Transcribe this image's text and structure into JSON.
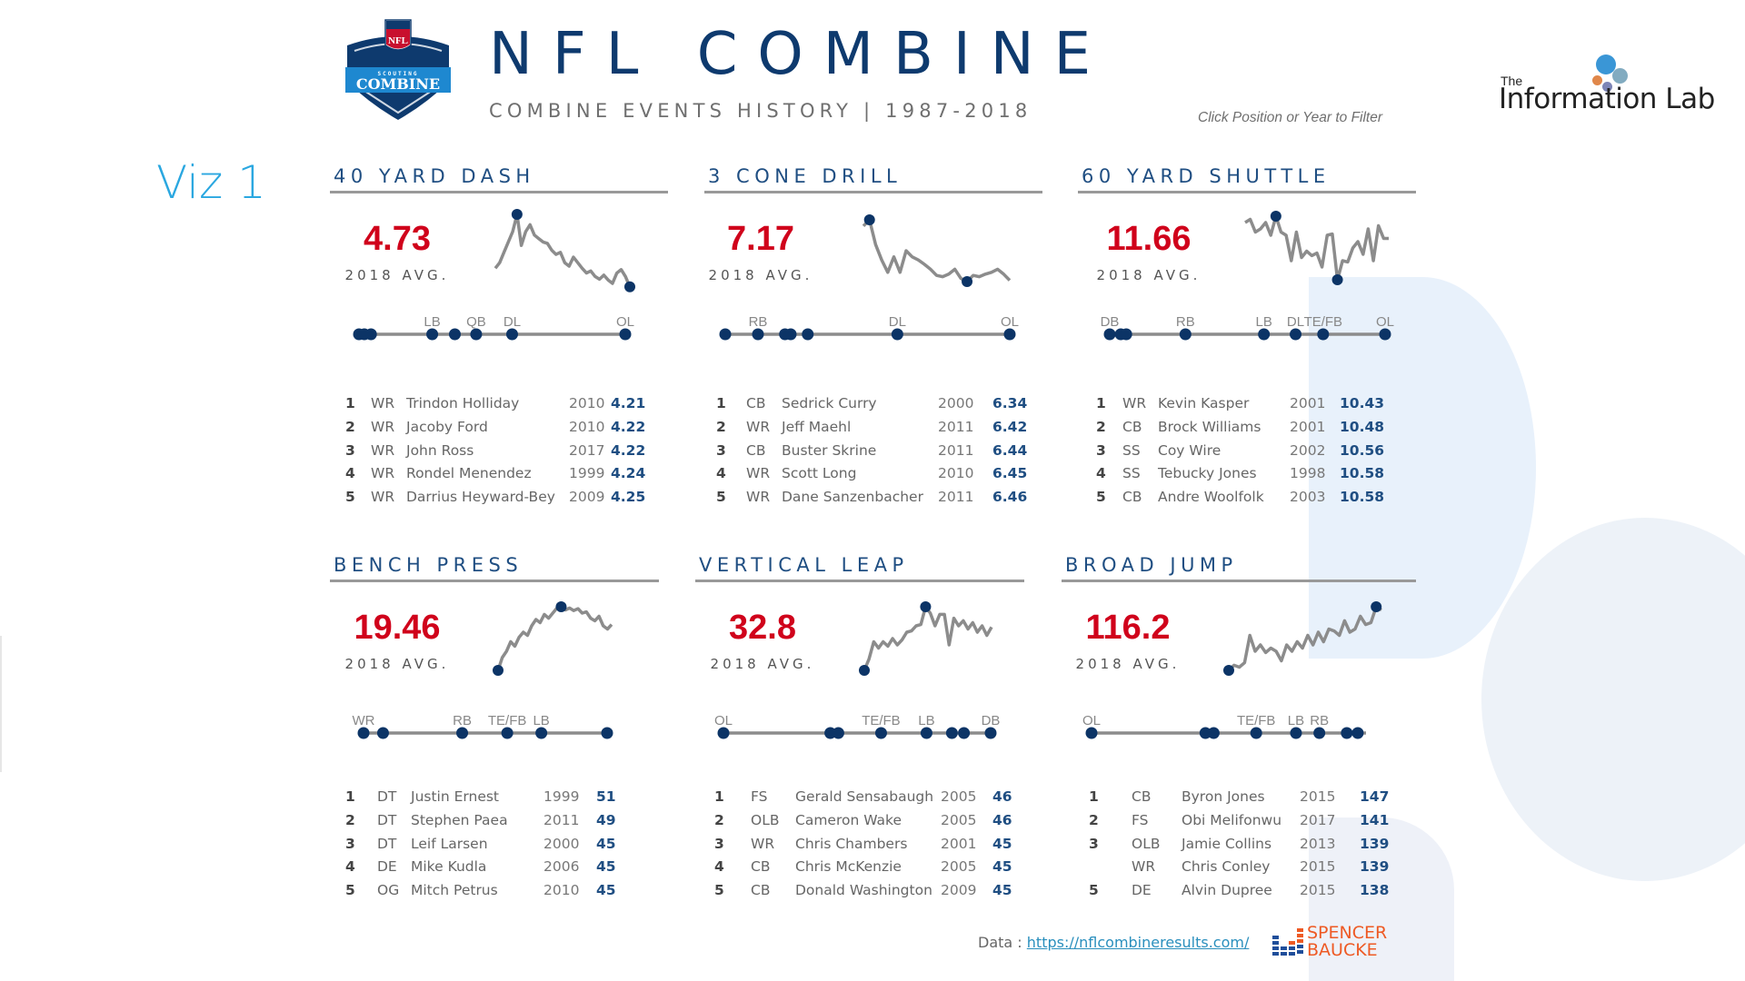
{
  "header": {
    "title": "NFL COMBINE",
    "subtitle": "COMBINE EVENTS HISTORY | 1987-2018",
    "filter_hint": "Click Position or Year to Filter",
    "nfl_logo_text_top": "NFL",
    "nfl_logo_text_scouting": "SCOUTING",
    "nfl_logo_text_combine": "COMBINE",
    "partner_logo_the": "The",
    "partner_logo_name": "Information Lab"
  },
  "viz_label": "Viz 1",
  "colors": {
    "accent_navy": "#0e3a6e",
    "avg_red": "#d0021b",
    "line_gray": "#8c8c8c",
    "dot_navy": "#0c3466",
    "viz_label_blue": "#2aa7e0"
  },
  "avg_label": "2018 AVG.",
  "panels": [
    {
      "title": "40 YARD DASH",
      "avg": "4.73",
      "positions": [
        {
          "label": "",
          "rel": 0.0
        },
        {
          "label": "",
          "rel": 0.02
        },
        {
          "label": "",
          "rel": 0.045
        },
        {
          "label": "LB",
          "rel": 0.275
        },
        {
          "label": "",
          "rel": 0.36
        },
        {
          "label": "QB",
          "rel": 0.44
        },
        {
          "label": "DL",
          "rel": 0.575
        },
        {
          "label": "OL",
          "rel": 1.0
        }
      ],
      "trend": [
        0.78,
        0.7,
        0.55,
        0.4,
        0.25,
        0.0,
        0.45,
        0.25,
        0.15,
        0.3,
        0.35,
        0.4,
        0.42,
        0.52,
        0.58,
        0.55,
        0.7,
        0.75,
        0.62,
        0.7,
        0.78,
        0.85,
        0.82,
        0.9,
        0.94,
        0.88,
        0.95,
        1.0,
        0.85,
        0.8,
        0.9,
        1.05
      ],
      "trend_min_index": 31,
      "trend_max_index": 5,
      "top5": [
        {
          "rank": "1",
          "pos": "WR",
          "name": "Trindon Holliday",
          "year": "2010",
          "value": "4.21"
        },
        {
          "rank": "2",
          "pos": "WR",
          "name": "Jacoby Ford",
          "year": "2010",
          "value": "4.22"
        },
        {
          "rank": "3",
          "pos": "WR",
          "name": "John Ross",
          "year": "2017",
          "value": "4.22"
        },
        {
          "rank": "4",
          "pos": "WR",
          "name": "Rondel Menendez",
          "year": "1999",
          "value": "4.24"
        },
        {
          "rank": "5",
          "pos": "WR",
          "name": "Darrius Heyward-Bey",
          "year": "2009",
          "value": "4.25"
        }
      ]
    },
    {
      "title": "3 CONE DRILL",
      "avg": "7.17",
      "positions": [
        {
          "label": "",
          "rel": 0.0
        },
        {
          "label": "RB",
          "rel": 0.115
        },
        {
          "label": "",
          "rel": 0.21
        },
        {
          "label": "",
          "rel": 0.23
        },
        {
          "label": "",
          "rel": 0.29
        },
        {
          "label": "DL",
          "rel": 0.605
        },
        {
          "label": "OL",
          "rel": 1.0
        }
      ],
      "trend": [
        0.1,
        0.0,
        0.4,
        0.65,
        0.85,
        0.6,
        0.85,
        0.5,
        0.6,
        0.65,
        0.72,
        0.8,
        0.9,
        0.92,
        0.88,
        0.8,
        0.95,
        1.0,
        0.9,
        0.92,
        0.88,
        0.85,
        0.8,
        0.88,
        0.98
      ],
      "trend_min_index": 17,
      "trend_max_index": 1,
      "top5": [
        {
          "rank": "1",
          "pos": "CB",
          "name": "Sedrick Curry",
          "year": "2000",
          "value": "6.34"
        },
        {
          "rank": "2",
          "pos": "WR",
          "name": "Jeff Maehl",
          "year": "2011",
          "value": "6.42"
        },
        {
          "rank": "3",
          "pos": "CB",
          "name": "Buster Skrine",
          "year": "2011",
          "value": "6.44"
        },
        {
          "rank": "4",
          "pos": "WR",
          "name": "Scott Long",
          "year": "2010",
          "value": "6.45"
        },
        {
          "rank": "5",
          "pos": "WR",
          "name": "Dane Sanzenbacher",
          "year": "2011",
          "value": "6.46"
        }
      ]
    },
    {
      "title": "60 YARD SHUTTLE",
      "avg": "11.66",
      "positions": [
        {
          "label": "DB",
          "rel": 0.0
        },
        {
          "label": "",
          "rel": 0.04
        },
        {
          "label": "",
          "rel": 0.06
        },
        {
          "label": "RB",
          "rel": 0.275
        },
        {
          "label": "LB",
          "rel": 0.56
        },
        {
          "label": "DL",
          "rel": 0.675
        },
        {
          "label": "TE/FB",
          "rel": 0.775
        },
        {
          "label": "OL",
          "rel": 1.0
        }
      ],
      "trend": [
        0.1,
        0.05,
        0.25,
        0.2,
        0.1,
        0.3,
        0.0,
        0.25,
        0.3,
        0.7,
        0.25,
        0.65,
        0.55,
        0.62,
        0.58,
        0.8,
        0.3,
        0.28,
        1.0,
        0.7,
        0.72,
        0.5,
        0.4,
        0.6,
        0.2,
        0.7,
        0.15,
        0.35,
        0.35
      ],
      "trend_min_index": 18,
      "trend_max_index": 6,
      "top5": [
        {
          "rank": "1",
          "pos": "WR",
          "name": "Kevin Kasper",
          "year": "2001",
          "value": "10.43"
        },
        {
          "rank": "2",
          "pos": "CB",
          "name": "Brock Williams",
          "year": "2001",
          "value": "10.48"
        },
        {
          "rank": "3",
          "pos": "SS",
          "name": "Coy Wire",
          "year": "2002",
          "value": "10.56"
        },
        {
          "rank": "4",
          "pos": "SS",
          "name": "Tebucky Jones",
          "year": "1998",
          "value": "10.58"
        },
        {
          "rank": "5",
          "pos": "CB",
          "name": "Andre Woolfolk",
          "year": "2003",
          "value": "10.58"
        }
      ]
    },
    {
      "title": "BENCH PRESS",
      "avg": "19.46",
      "positions": [
        {
          "label": "WR",
          "rel": 0.0
        },
        {
          "label": "",
          "rel": 0.08
        },
        {
          "label": "RB",
          "rel": 0.405
        },
        {
          "label": "TE/FB",
          "rel": 0.59
        },
        {
          "label": "LB",
          "rel": 0.73
        },
        {
          "label": "",
          "rel": 1.0
        }
      ],
      "trend": [
        1.0,
        0.8,
        0.7,
        0.55,
        0.62,
        0.48,
        0.4,
        0.45,
        0.3,
        0.2,
        0.25,
        0.12,
        0.18,
        0.1,
        0.02,
        0.0,
        0.05,
        0.02,
        0.06,
        0.03,
        0.1,
        0.08,
        0.18,
        0.22,
        0.15,
        0.3,
        0.35,
        0.28
      ],
      "trend_min_index": 0,
      "trend_max_index": 15,
      "top5": [
        {
          "rank": "1",
          "pos": "DT",
          "name": "Justin Ernest",
          "year": "1999",
          "value": "51"
        },
        {
          "rank": "2",
          "pos": "DT",
          "name": "Stephen Paea",
          "year": "2011",
          "value": "49"
        },
        {
          "rank": "3",
          "pos": "DT",
          "name": "Leif Larsen",
          "year": "2000",
          "value": "45"
        },
        {
          "rank": "4",
          "pos": "DE",
          "name": "Mike Kudla",
          "year": "2006",
          "value": "45"
        },
        {
          "rank": "5",
          "pos": "OG",
          "name": "Mitch Petrus",
          "year": "2010",
          "value": "45"
        }
      ]
    },
    {
      "title": "VERTICAL LEAP",
      "avg": "32.8",
      "positions": [
        {
          "label": "OL",
          "rel": 0.0
        },
        {
          "label": "",
          "rel": 0.4
        },
        {
          "label": "",
          "rel": 0.43
        },
        {
          "label": "TE/FB",
          "rel": 0.59
        },
        {
          "label": "LB",
          "rel": 0.76
        },
        {
          "label": "",
          "rel": 0.855
        },
        {
          "label": "",
          "rel": 0.9
        },
        {
          "label": "DB",
          "rel": 1.0
        }
      ],
      "trend": [
        1.0,
        0.82,
        0.55,
        0.65,
        0.55,
        0.62,
        0.5,
        0.6,
        0.52,
        0.4,
        0.38,
        0.3,
        0.28,
        0.0,
        0.1,
        0.3,
        0.12,
        0.12,
        0.6,
        0.18,
        0.3,
        0.22,
        0.35,
        0.25,
        0.4,
        0.3,
        0.45,
        0.32
      ],
      "trend_min_index": 0,
      "trend_max_index": 13,
      "top5": [
        {
          "rank": "1",
          "pos": "FS",
          "name": "Gerald Sensabaugh",
          "year": "2005",
          "value": "46"
        },
        {
          "rank": "2",
          "pos": "OLB",
          "name": "Cameron Wake",
          "year": "2005",
          "value": "46"
        },
        {
          "rank": "3",
          "pos": "WR",
          "name": "Chris Chambers",
          "year": "2001",
          "value": "45"
        },
        {
          "rank": "4",
          "pos": "CB",
          "name": "Chris McKenzie",
          "year": "2005",
          "value": "45"
        },
        {
          "rank": "5",
          "pos": "CB",
          "name": "Donald Washington",
          "year": "2009",
          "value": "45"
        }
      ]
    },
    {
      "title": "BROAD JUMP",
      "avg": "116.2",
      "positions": [
        {
          "label": "OL",
          "rel": 0.0
        },
        {
          "label": "",
          "rel": 0.415
        },
        {
          "label": "",
          "rel": 0.445
        },
        {
          "label": "TE/FB",
          "rel": 0.6
        },
        {
          "label": "LB",
          "rel": 0.745
        },
        {
          "label": "RB",
          "rel": 0.83
        },
        {
          "label": "",
          "rel": 0.93
        },
        {
          "label": "",
          "rel": 0.97
        }
      ],
      "trend": [
        1.0,
        0.92,
        0.95,
        0.88,
        0.45,
        0.7,
        0.6,
        0.72,
        0.65,
        0.7,
        0.85,
        0.6,
        0.7,
        0.55,
        0.65,
        0.45,
        0.6,
        0.4,
        0.55,
        0.35,
        0.38,
        0.45,
        0.22,
        0.4,
        0.35,
        0.15,
        0.28,
        0.25,
        0.0,
        0.05
      ],
      "trend_min_index": 0,
      "trend_max_index": 28,
      "top5": [
        {
          "rank": "1",
          "pos": "CB",
          "name": "Byron Jones",
          "year": "2015",
          "value": "147"
        },
        {
          "rank": "2",
          "pos": "FS",
          "name": "Obi Melifonwu",
          "year": "2017",
          "value": "141"
        },
        {
          "rank": "3",
          "pos": "OLB",
          "name": "Jamie Collins",
          "year": "2013",
          "value": "139"
        },
        {
          "rank": "",
          "pos": "WR",
          "name": "Chris Conley",
          "year": "2015",
          "value": "139"
        },
        {
          "rank": "5",
          "pos": "DE",
          "name": "Alvin Dupree",
          "year": "2015",
          "value": "138"
        }
      ]
    }
  ],
  "footer": {
    "data_prefix": "Data :",
    "data_link": "https://nflcombineresults.com/",
    "author_logo_line1": "SPENCER",
    "author_logo_line2": "BAUCKE"
  }
}
